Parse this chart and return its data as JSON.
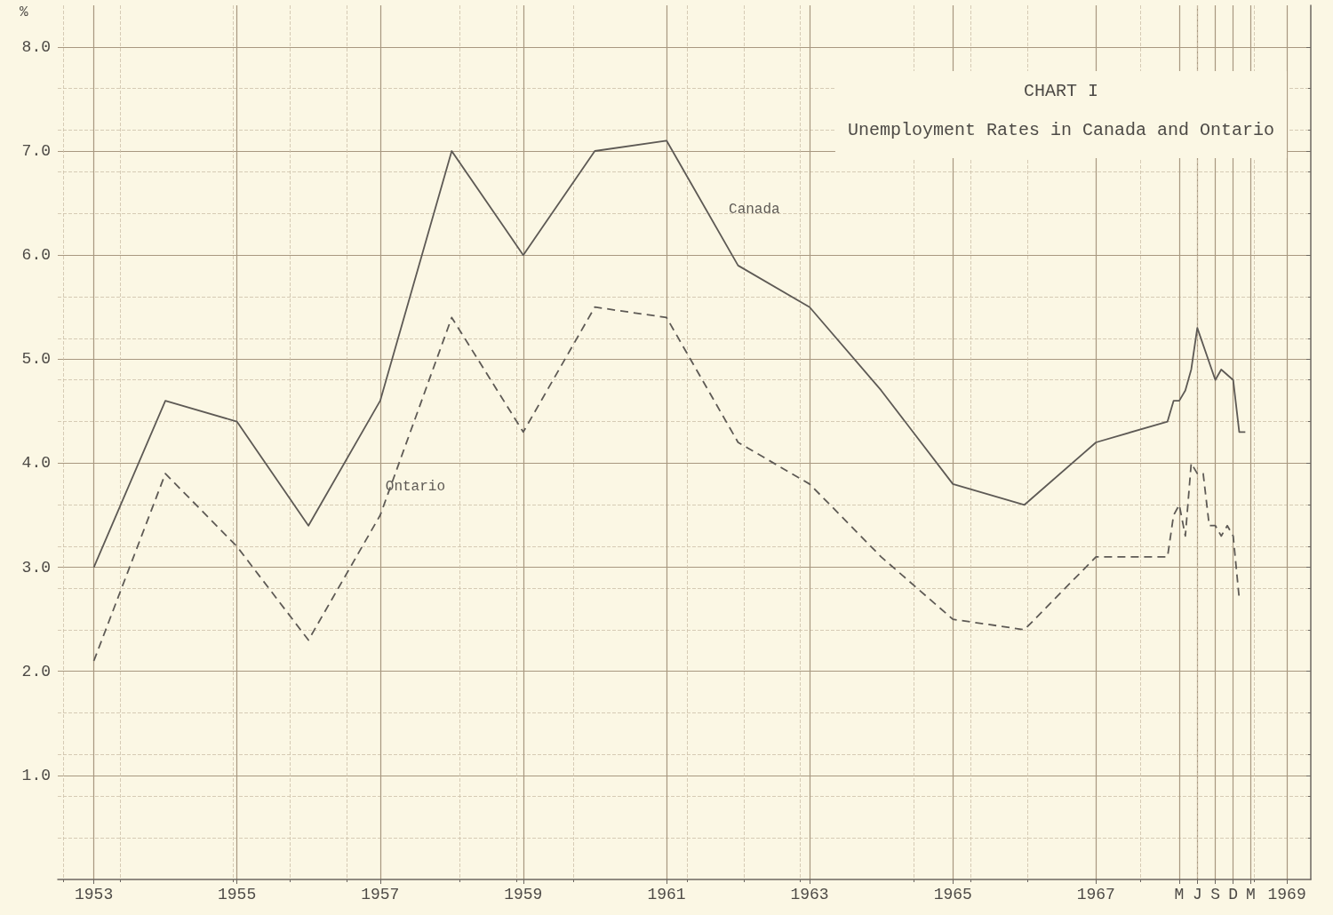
{
  "chart_data": {
    "type": "line",
    "title": "CHART I",
    "subtitle": "Unemployment Rates in Canada and Ontario",
    "ylabel": "%",
    "x": [
      "1953",
      "1954",
      "1955",
      "1956",
      "1957",
      "1958",
      "1959",
      "1960",
      "1961",
      "1962",
      "1963",
      "1964",
      "1965",
      "1966",
      "1967",
      "1968-01",
      "1968-02",
      "1968-03",
      "1968-04",
      "1968-05",
      "1968-06",
      "1968-07",
      "1968-08",
      "1968-09",
      "1968-10",
      "1968-11",
      "1968-12",
      "1969-01",
      "1969-02"
    ],
    "series": [
      {
        "name": "Canada",
        "color": "#5e5a55",
        "line_style": "solid",
        "values": [
          3.0,
          4.6,
          4.4,
          3.4,
          4.6,
          7.0,
          6.0,
          7.0,
          7.1,
          5.9,
          5.5,
          4.7,
          3.8,
          3.6,
          4.2,
          4.4,
          4.6,
          4.6,
          4.7,
          4.9,
          5.3,
          null,
          null,
          4.8,
          4.9,
          null,
          4.8,
          4.3,
          4.3
        ]
      },
      {
        "name": "Ontario",
        "color": "#5e5a55",
        "line_style": "dashed",
        "values": [
          2.1,
          3.9,
          3.2,
          2.3,
          3.5,
          5.4,
          4.3,
          5.5,
          5.4,
          4.2,
          3.8,
          3.1,
          2.5,
          2.4,
          3.1,
          3.1,
          3.5,
          3.6,
          3.3,
          4.0,
          3.9,
          3.9,
          3.4,
          3.4,
          3.3,
          3.4,
          3.3,
          2.7,
          null
        ]
      }
    ],
    "xlim": [
      "1952-07",
      "1970-01"
    ],
    "xticks": [
      {
        "value": "1953",
        "label": "1953"
      },
      {
        "value": "1955",
        "label": "1955"
      },
      {
        "value": "1957",
        "label": "1957"
      },
      {
        "value": "1959",
        "label": "1959"
      },
      {
        "value": "1961",
        "label": "1961"
      },
      {
        "value": "1963",
        "label": "1963"
      },
      {
        "value": "1965",
        "label": "1965"
      },
      {
        "value": "1967",
        "label": "1967"
      },
      {
        "value": "1968-03",
        "label": "M"
      },
      {
        "value": "1968-06",
        "label": "J"
      },
      {
        "value": "1968-09",
        "label": "S"
      },
      {
        "value": "1968-12",
        "label": "D"
      },
      {
        "value": "1969-03",
        "label": "M"
      },
      {
        "value": "1969-09",
        "label": "1969"
      }
    ],
    "ylim": [
      0,
      8.4
    ],
    "yticks": [
      {
        "value": 1,
        "label": "1.0"
      },
      {
        "value": 2,
        "label": "2.0"
      },
      {
        "value": 3,
        "label": "3.0"
      },
      {
        "value": 4,
        "label": "4.0"
      },
      {
        "value": 5,
        "label": "5.0"
      },
      {
        "value": 6,
        "label": "6.0"
      },
      {
        "value": 7,
        "label": "7.0"
      },
      {
        "value": 8,
        "label": "8.0"
      }
    ],
    "grid": true,
    "legend": false,
    "marker": "none"
  }
}
